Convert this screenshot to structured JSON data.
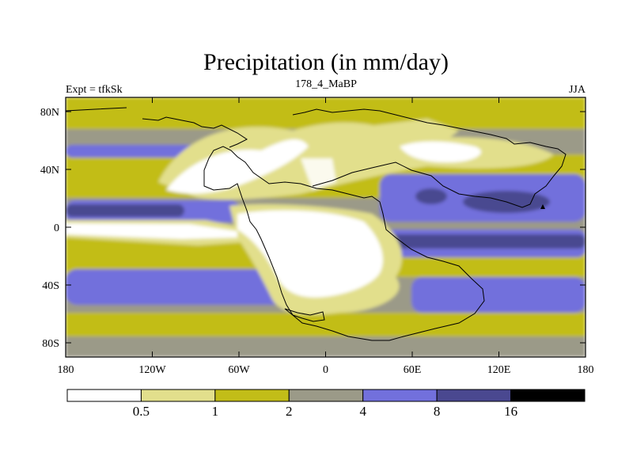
{
  "title": "Precipitation (in mm/day)",
  "subtitle_left": "Expt = tfkSk",
  "subtitle_center": "178_4_MaBP",
  "subtitle_right": "JJA",
  "y_ticks": [
    "80N",
    "40N",
    "0",
    "40S",
    "80S"
  ],
  "x_ticks": [
    "180",
    "120W",
    "60W",
    "0",
    "60E",
    "120E",
    "180"
  ],
  "colorbar": {
    "levels": [
      "0.5",
      "1",
      "2",
      "4",
      "8",
      "16"
    ],
    "colors": [
      "#ffffff",
      "#e2df8c",
      "#c2bd18",
      "#9b9a88",
      "#7270dc",
      "#4a4890",
      "#000000"
    ]
  }
}
